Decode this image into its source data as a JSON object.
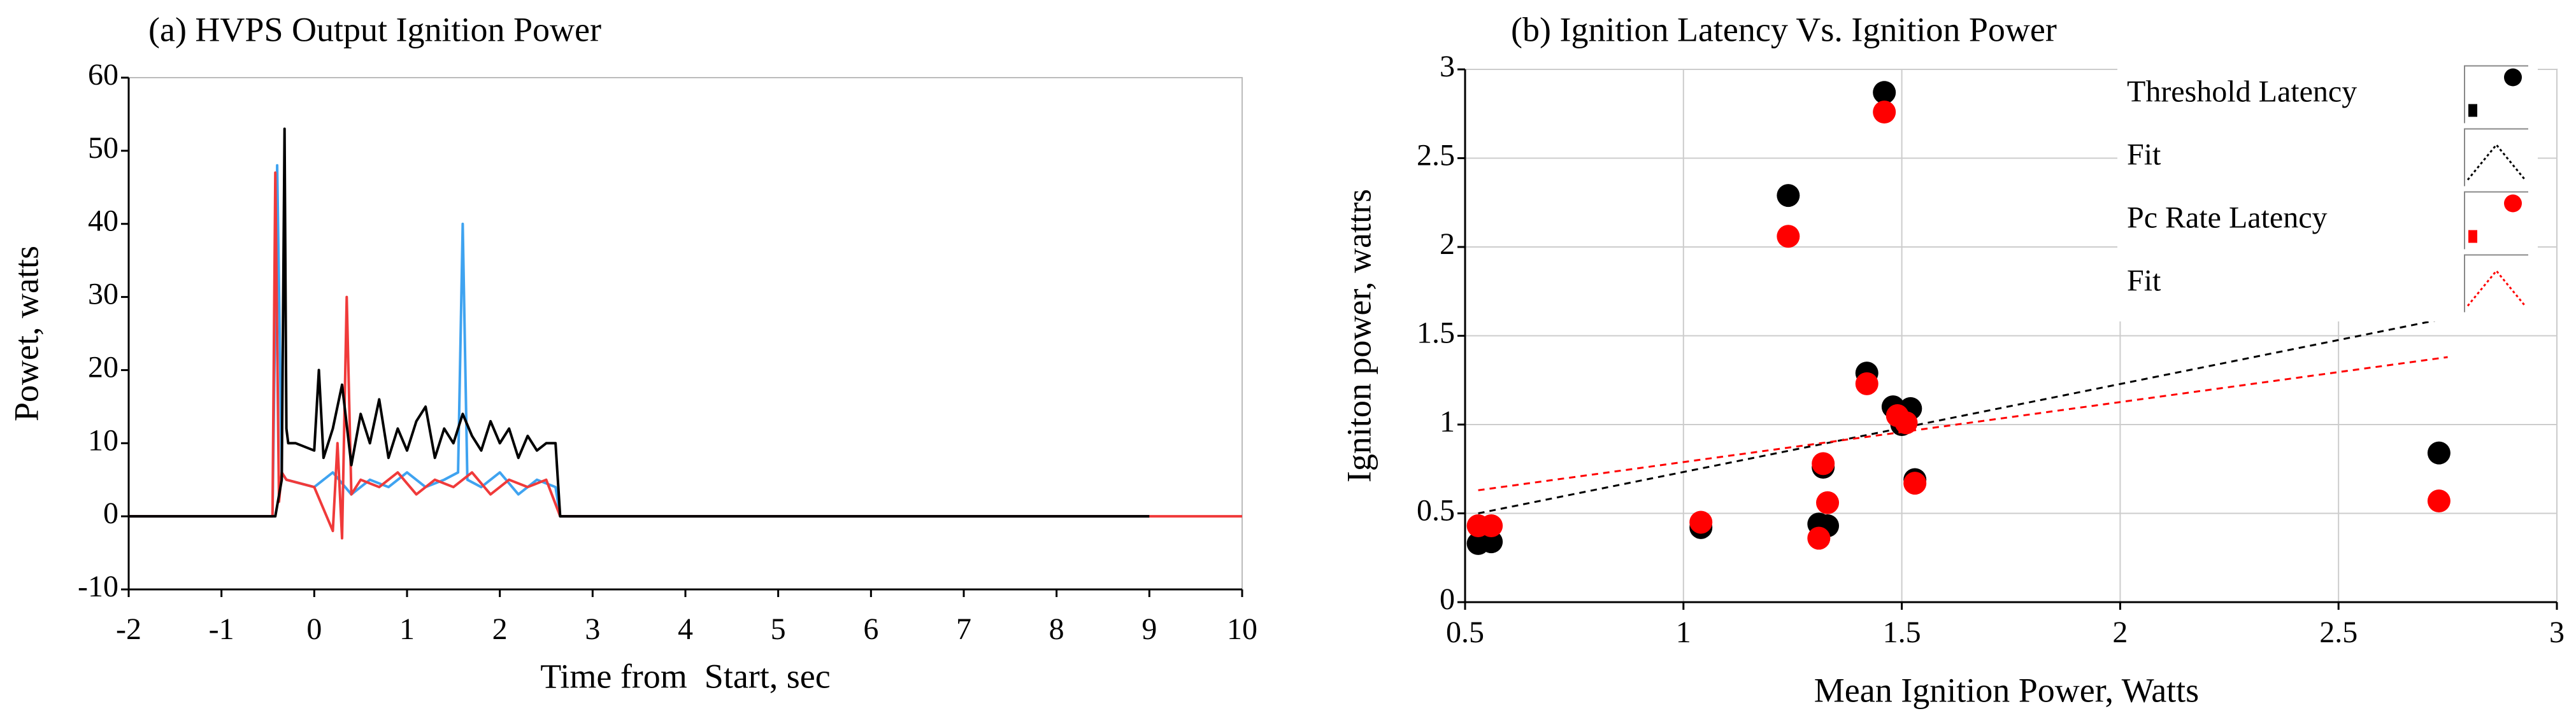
{
  "chart_data": [
    {
      "type": "line",
      "title": "(a) HVPS Output Ignition Power",
      "x_label": "Time from  Start, sec",
      "y_label": "Powet, watts",
      "xlim": [
        -2,
        10
      ],
      "ylim": [
        -10,
        60
      ],
      "xticks": [
        -2,
        -1,
        0,
        1,
        2,
        3,
        4,
        5,
        6,
        7,
        8,
        9,
        10
      ],
      "yticks": [
        -10,
        0,
        10,
        20,
        30,
        40,
        50,
        60
      ],
      "grid": false,
      "series": [
        {
          "color": "#3fa3f0",
          "x": [
            -2,
            -0.45,
            -0.4,
            -0.35,
            -0.3,
            0,
            0.2,
            0.4,
            0.6,
            0.8,
            1.0,
            1.2,
            1.4,
            1.55,
            1.6,
            1.65,
            1.8,
            2.0,
            2.2,
            2.4,
            2.6,
            2.65,
            2.7,
            9
          ],
          "values": [
            0,
            0,
            48,
            6,
            5,
            4,
            6,
            3,
            5,
            4,
            6,
            4,
            5,
            6,
            40,
            5,
            4,
            6,
            3,
            5,
            4,
            0,
            0,
            0
          ]
        },
        {
          "color": "#f03a3a",
          "x": [
            -2,
            -0.45,
            -0.42,
            -0.38,
            -0.35,
            -0.3,
            0,
            0.2,
            0.25,
            0.3,
            0.35,
            0.4,
            0.5,
            0.7,
            0.9,
            1.1,
            1.3,
            1.5,
            1.7,
            1.9,
            2.1,
            2.3,
            2.5,
            2.65,
            2.7,
            10
          ],
          "values": [
            0,
            0,
            47,
            2,
            6,
            5,
            4,
            -2,
            10,
            -3,
            30,
            3,
            5,
            4,
            6,
            3,
            5,
            4,
            6,
            3,
            5,
            4,
            5,
            0,
            0,
            0
          ]
        },
        {
          "color": "#000000",
          "x": [
            -2,
            -0.42,
            -0.35,
            -0.32,
            -0.3,
            -0.28,
            -0.2,
            0,
            0.05,
            0.1,
            0.2,
            0.3,
            0.4,
            0.5,
            0.6,
            0.7,
            0.8,
            0.9,
            1.0,
            1.1,
            1.2,
            1.3,
            1.4,
            1.5,
            1.6,
            1.7,
            1.8,
            1.9,
            2.0,
            2.1,
            2.2,
            2.3,
            2.4,
            2.5,
            2.6,
            2.65,
            2.7,
            9
          ],
          "values": [
            0,
            0,
            5,
            53,
            12,
            10,
            10,
            9,
            20,
            8,
            12,
            18,
            7,
            14,
            10,
            16,
            8,
            12,
            9,
            13,
            15,
            8,
            12,
            10,
            14,
            11,
            9,
            13,
            10,
            12,
            8,
            11,
            9,
            10,
            10,
            0,
            0,
            0
          ]
        }
      ]
    },
    {
      "type": "scatter",
      "title": "(b) Ignition Latency Vs. Ignition Power",
      "x_label": "Mean Ignition Power, Watts",
      "y_label": "Igniton power, wattrs",
      "xlim": [
        0.5,
        3
      ],
      "ylim": [
        0,
        3
      ],
      "xticks": [
        0.5,
        1,
        1.5,
        2,
        2.5,
        3
      ],
      "yticks": [
        0,
        0.5,
        1,
        1.5,
        2,
        2.5,
        3
      ],
      "grid": true,
      "legend": "upper right",
      "series": [
        {
          "name": "Threshold Latency",
          "type": "scatter",
          "color": "#000000",
          "x": [
            0.53,
            0.56,
            1.04,
            1.24,
            1.31,
            1.32,
            1.33,
            1.42,
            1.46,
            1.48,
            1.5,
            1.52,
            1.53,
            2.73
          ],
          "values": [
            0.33,
            0.34,
            0.42,
            2.29,
            0.44,
            0.76,
            0.43,
            1.29,
            2.87,
            1.1,
            1.0,
            1.09,
            0.69,
            0.84
          ]
        },
        {
          "name": "Fit",
          "type": "line",
          "color": "#000000",
          "dashed": true,
          "x": [
            0.53,
            2.75
          ],
          "values": [
            0.5,
            1.6
          ]
        },
        {
          "name": "Pc Rate Latency",
          "type": "scatter",
          "color": "#ff0000",
          "x": [
            0.53,
            0.56,
            1.04,
            1.24,
            1.31,
            1.32,
            1.33,
            1.42,
            1.46,
            1.49,
            1.51,
            1.53,
            2.73
          ],
          "values": [
            0.43,
            0.43,
            0.45,
            2.06,
            0.36,
            0.78,
            0.56,
            1.23,
            2.76,
            1.05,
            1.01,
            0.67,
            0.57
          ]
        },
        {
          "name": "Fit",
          "type": "line",
          "color": "#ff0000",
          "dashed": true,
          "x": [
            0.53,
            2.75
          ],
          "values": [
            0.63,
            1.38
          ]
        }
      ]
    }
  ]
}
